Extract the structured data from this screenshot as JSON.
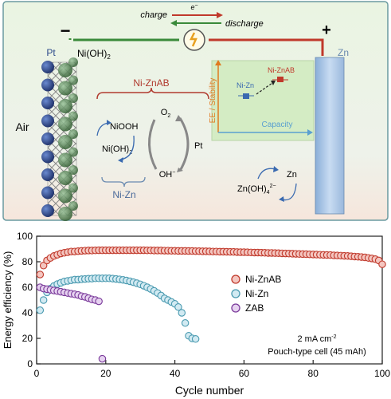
{
  "schematic": {
    "charge": "charge",
    "electron": "e",
    "electron_sup": "−",
    "discharge": "discharge",
    "minus": "−",
    "plus": "+",
    "pt": "Pt",
    "nioh2_top": "Ni(OH)",
    "nioh2_top_sub": "2",
    "zn_top": "Zn",
    "air": "Air",
    "nizanb": "Ni-ZnAB",
    "niooh": "NiOOH",
    "nioh2_cycle": "Ni(OH)",
    "nioh2_cycle_sub": "2",
    "o2": "O",
    "o2_sub": "2",
    "oh": "OH",
    "oh_sup": "−",
    "pt_cycle": "Pt",
    "nizn_cycle": "Ni-Zn",
    "inset": {
      "ylabel": "EE / Stability",
      "xlabel": "Capacity",
      "point_nizn": "Ni-Zn",
      "point_niznab": "Ni-ZnAB"
    },
    "zn_cycle": "Zn",
    "znoh": "Zn(OH)",
    "znoh_sub": "4",
    "znoh_sup": "2−",
    "colors": {
      "left_box": "#f7f3cf",
      "right_box": "#e4f0ec",
      "inset_bg": "#d4ecc4",
      "wire_green": "#3a8a3a",
      "wire_red": "#c0392b",
      "brace_red": "#b03a2e",
      "brace_blue": "#6a8ab0",
      "ee_axis": "#e07a20",
      "cap_axis": "#5aa0d0",
      "electrode_blue": "#2c4a8a"
    }
  },
  "chart_data": {
    "type": "scatter",
    "xlabel": "Cycle number",
    "ylabel": "Energy efficiency (%)",
    "xlim": [
      0,
      100
    ],
    "ylim": [
      0,
      100
    ],
    "xticks": [
      0,
      20,
      40,
      60,
      80,
      100
    ],
    "yticks": [
      0,
      20,
      40,
      60,
      80,
      100
    ],
    "legend_position": "right",
    "annotation_line1": "2 mA cm",
    "annotation_line1_sup": "-2",
    "annotation_line2": "Pouch-type cell (45 mAh)",
    "series": [
      {
        "name": "Ni-ZnAB",
        "color": "#c0392b",
        "fill": "#f4c6c0",
        "x": [
          1,
          2,
          3,
          4,
          5,
          6,
          7,
          8,
          9,
          10,
          11,
          12,
          13,
          14,
          15,
          16,
          17,
          18,
          19,
          20,
          21,
          22,
          23,
          24,
          25,
          26,
          27,
          28,
          29,
          30,
          31,
          32,
          33,
          34,
          35,
          36,
          37,
          38,
          39,
          40,
          41,
          42,
          43,
          44,
          45,
          46,
          47,
          48,
          49,
          50,
          51,
          52,
          53,
          54,
          55,
          56,
          57,
          58,
          59,
          60,
          61,
          62,
          63,
          64,
          65,
          66,
          67,
          68,
          69,
          70,
          71,
          72,
          73,
          74,
          75,
          76,
          77,
          78,
          79,
          80,
          81,
          82,
          83,
          84,
          85,
          86,
          87,
          88,
          89,
          90,
          91,
          92,
          93,
          94,
          95,
          96,
          97,
          98,
          99,
          100
        ],
        "y": [
          70,
          77,
          81,
          83,
          84.5,
          85.5,
          86.5,
          87,
          87.5,
          88,
          88,
          88.3,
          88.5,
          88.7,
          88.8,
          88.8,
          88.9,
          89,
          89,
          89,
          89,
          89,
          89,
          89,
          89,
          89,
          89,
          89,
          89,
          89,
          89,
          88.9,
          88.9,
          88.8,
          88.8,
          88.8,
          88.7,
          88.7,
          88.6,
          88.6,
          88.5,
          88.5,
          88.5,
          88.4,
          88.4,
          88.3,
          88.3,
          88.2,
          88.2,
          88.1,
          88,
          88,
          87.9,
          87.9,
          87.8,
          87.7,
          87.7,
          87.6,
          87.5,
          87.5,
          87.4,
          87.3,
          87.2,
          87.2,
          87.1,
          87,
          86.9,
          86.9,
          86.8,
          86.7,
          86.6,
          86.5,
          86.4,
          86.3,
          86.2,
          86.1,
          86,
          85.9,
          85.8,
          85.7,
          85.6,
          85.5,
          85.4,
          85.3,
          85.2,
          85,
          84.9,
          84.8,
          84.6,
          84.5,
          84.3,
          84.1,
          83.9,
          83.7,
          83.4,
          83,
          82.6,
          82,
          81,
          78
        ]
      },
      {
        "name": "Ni-Zn",
        "color": "#4a9ab0",
        "fill": "#d2eaf2",
        "x": [
          1,
          2,
          3,
          4,
          5,
          6,
          7,
          8,
          9,
          10,
          11,
          12,
          13,
          14,
          15,
          16,
          17,
          18,
          19,
          20,
          21,
          22,
          23,
          24,
          25,
          26,
          27,
          28,
          29,
          30,
          31,
          32,
          33,
          34,
          35,
          36,
          37,
          38,
          39,
          40,
          41,
          42,
          43,
          44,
          45,
          46
        ],
        "y": [
          42,
          50,
          56,
          59,
          61,
          62.5,
          63.5,
          64.5,
          65,
          65.5,
          66,
          66,
          66.3,
          66.5,
          66.7,
          66.8,
          67,
          67,
          67,
          67,
          67,
          66.8,
          66.5,
          66.2,
          65.8,
          65.3,
          64.7,
          64,
          63.2,
          62.3,
          61.2,
          60,
          58.7,
          57.2,
          55.5,
          53.5,
          51.3,
          50,
          48.5,
          47,
          44.5,
          40,
          32,
          22,
          20,
          19.5
        ]
      },
      {
        "name": "ZAB",
        "color": "#7a3a9a",
        "fill": "#e6d2f0",
        "x": [
          1,
          2,
          3,
          4,
          5,
          6,
          7,
          8,
          9,
          10,
          11,
          12,
          13,
          14,
          15,
          16,
          17,
          18,
          19
        ],
        "y": [
          60,
          59,
          58.5,
          58,
          57.5,
          57,
          56.5,
          56,
          55.5,
          55,
          54.5,
          54,
          53,
          52.5,
          51.5,
          50.5,
          50,
          49,
          4
        ]
      }
    ]
  }
}
